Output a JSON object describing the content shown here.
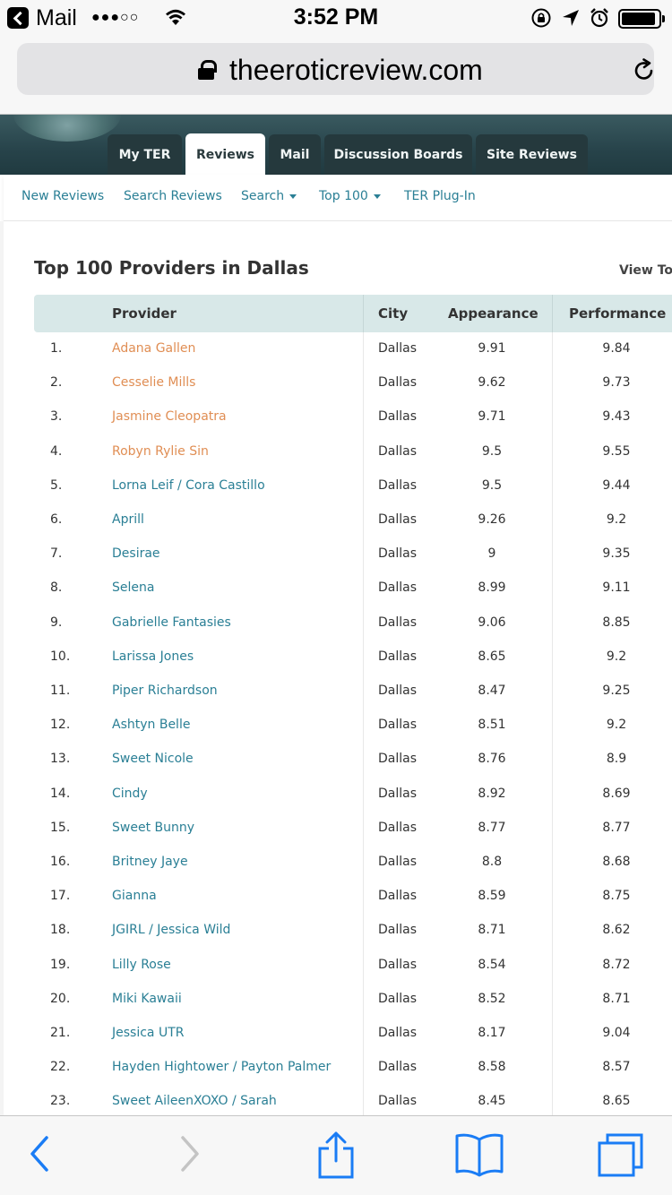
{
  "status_bar": {
    "app": "Mail",
    "signal": "●●●○○",
    "time": "3:52 PM"
  },
  "browser": {
    "url": "theeroticreview.com"
  },
  "site": {
    "tabs": [
      "My TER",
      "Reviews",
      "Mail",
      "Discussion Boards",
      "Site Reviews"
    ],
    "active_tab": "Reviews",
    "subnav": {
      "new_reviews": "New Reviews",
      "search_reviews": "Search Reviews",
      "search": "Search",
      "top100": "Top 100",
      "plugin": "TER Plug-In"
    }
  },
  "page": {
    "title": "Top 100 Providers in Dallas",
    "view_top": "View To"
  },
  "table": {
    "headers": {
      "provider": "Provider",
      "city": "City",
      "appearance": "Appearance",
      "performance": "Performance"
    },
    "rows": [
      {
        "rank": "1.",
        "name": "Adana Gallen",
        "city": "Dallas",
        "appearance": "9.91",
        "performance": "9.84",
        "highlight": true
      },
      {
        "rank": "2.",
        "name": "Cesselie Mills",
        "city": "Dallas",
        "appearance": "9.62",
        "performance": "9.73",
        "highlight": true
      },
      {
        "rank": "3.",
        "name": "Jasmine Cleopatra",
        "city": "Dallas",
        "appearance": "9.71",
        "performance": "9.43",
        "highlight": true
      },
      {
        "rank": "4.",
        "name": "Robyn Rylie Sin",
        "city": "Dallas",
        "appearance": "9.5",
        "performance": "9.55",
        "highlight": true
      },
      {
        "rank": "5.",
        "name": "Lorna Leif / Cora Castillo",
        "city": "Dallas",
        "appearance": "9.5",
        "performance": "9.44",
        "highlight": false
      },
      {
        "rank": "6.",
        "name": "Aprill",
        "city": "Dallas",
        "appearance": "9.26",
        "performance": "9.2",
        "highlight": false
      },
      {
        "rank": "7.",
        "name": "Desirae",
        "city": "Dallas",
        "appearance": "9",
        "performance": "9.35",
        "highlight": false
      },
      {
        "rank": "8.",
        "name": "Selena",
        "city": "Dallas",
        "appearance": "8.99",
        "performance": "9.11",
        "highlight": false
      },
      {
        "rank": "9.",
        "name": "Gabrielle Fantasies",
        "city": "Dallas",
        "appearance": "9.06",
        "performance": "8.85",
        "highlight": false
      },
      {
        "rank": "10.",
        "name": "Larissa Jones",
        "city": "Dallas",
        "appearance": "8.65",
        "performance": "9.2",
        "highlight": false
      },
      {
        "rank": "11.",
        "name": "Piper Richardson",
        "city": "Dallas",
        "appearance": "8.47",
        "performance": "9.25",
        "highlight": false
      },
      {
        "rank": "12.",
        "name": "Ashtyn Belle",
        "city": "Dallas",
        "appearance": "8.51",
        "performance": "9.2",
        "highlight": false
      },
      {
        "rank": "13.",
        "name": "Sweet Nicole",
        "city": "Dallas",
        "appearance": "8.76",
        "performance": "8.9",
        "highlight": false
      },
      {
        "rank": "14.",
        "name": "Cindy",
        "city": "Dallas",
        "appearance": "8.92",
        "performance": "8.69",
        "highlight": false
      },
      {
        "rank": "15.",
        "name": "Sweet Bunny",
        "city": "Dallas",
        "appearance": "8.77",
        "performance": "8.77",
        "highlight": false
      },
      {
        "rank": "16.",
        "name": "Britney Jaye",
        "city": "Dallas",
        "appearance": "8.8",
        "performance": "8.68",
        "highlight": false
      },
      {
        "rank": "17.",
        "name": "Gianna",
        "city": "Dallas",
        "appearance": "8.59",
        "performance": "8.75",
        "highlight": false
      },
      {
        "rank": "18.",
        "name": "JGIRL / Jessica Wild",
        "city": "Dallas",
        "appearance": "8.71",
        "performance": "8.62",
        "highlight": false
      },
      {
        "rank": "19.",
        "name": "Lilly Rose",
        "city": "Dallas",
        "appearance": "8.54",
        "performance": "8.72",
        "highlight": false
      },
      {
        "rank": "20.",
        "name": "Miki Kawaii",
        "city": "Dallas",
        "appearance": "8.52",
        "performance": "8.71",
        "highlight": false
      },
      {
        "rank": "21.",
        "name": "Jessica UTR",
        "city": "Dallas",
        "appearance": "8.17",
        "performance": "9.04",
        "highlight": false
      },
      {
        "rank": "22.",
        "name": "Hayden Hightower / Payton Palmer",
        "city": "Dallas",
        "appearance": "8.58",
        "performance": "8.57",
        "highlight": false
      },
      {
        "rank": "23.",
        "name": "Sweet AileenXOXO / Sarah",
        "city": "Dallas",
        "appearance": "8.45",
        "performance": "8.65",
        "highlight": false
      }
    ]
  },
  "toolbar": {
    "icons": [
      "back-icon",
      "forward-icon",
      "share-icon",
      "bookmarks-icon",
      "tabs-icon"
    ]
  },
  "colors": {
    "link": "#2a7f95",
    "highlight_link": "#e08e54",
    "header_bg": "#d8e8e8",
    "site_header": "#27434a",
    "ios_blue": "#1a7cf5"
  }
}
